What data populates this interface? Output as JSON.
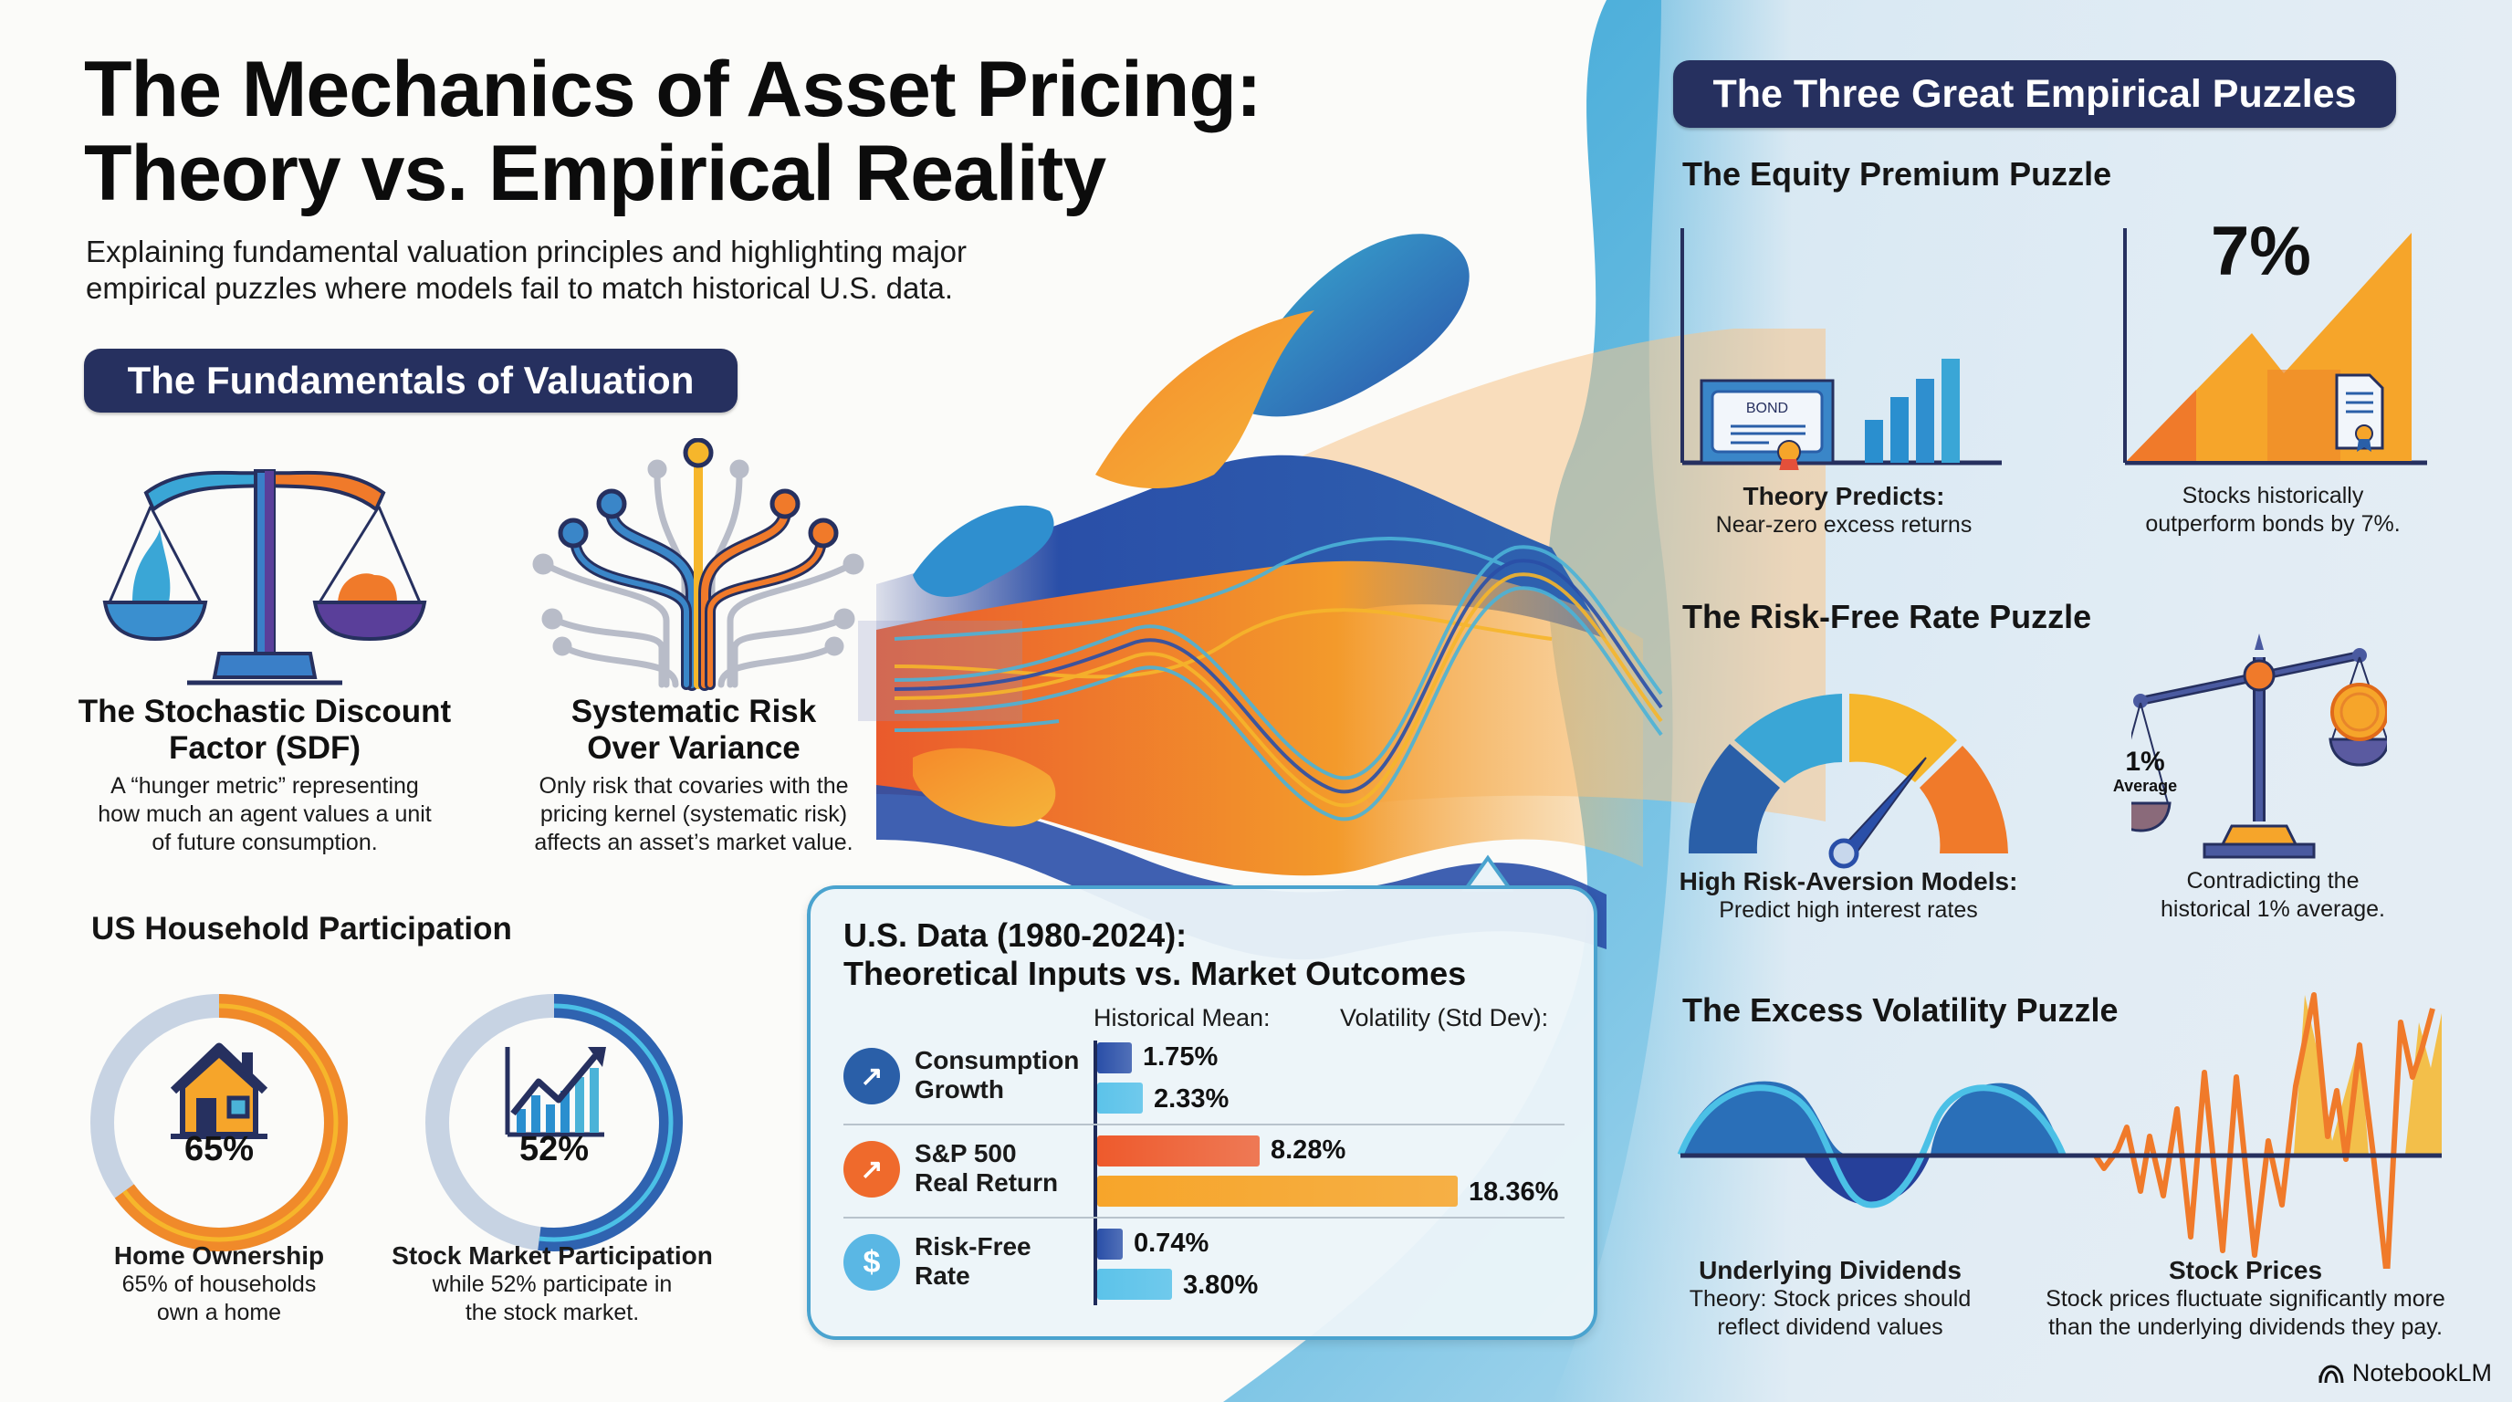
{
  "header": {
    "title_line1": "The Mechanics of Asset Pricing:",
    "title_line2": "Theory vs. Empirical Reality",
    "subtitle_line1": "Explaining fundamental valuation principles and highlighting major",
    "subtitle_line2": "empirical puzzles where models fail to match historical U.S. data."
  },
  "fundamentals": {
    "heading": "The Fundamentals of Valuation",
    "sdf": {
      "icon": "balance-scale-icon",
      "title_line1": "The Stochastic Discount",
      "title_line2": "Factor (SDF)",
      "desc_line1": "A “hunger metric” representing",
      "desc_line2": "how much an agent values a unit",
      "desc_line3": "of future consumption."
    },
    "systematic": {
      "icon": "branching-tree-icon",
      "title_line1": "Systematic Risk",
      "title_line2": "Over Variance",
      "desc_line1": "Only risk that covaries with the",
      "desc_line2": "pricing kernel (systematic risk)",
      "desc_line3": "affects an asset’s market value."
    }
  },
  "household": {
    "heading": "US Household Participation",
    "home": {
      "icon": "house-icon",
      "percent": 65,
      "value_label": "65%",
      "title": "Home Ownership",
      "desc_line1": "65% of households",
      "desc_line2": "own a home",
      "color": "#f08a2a"
    },
    "stock": {
      "icon": "chart-growth-icon",
      "percent": 52,
      "value_label": "52%",
      "title": "Stock Market Participation",
      "desc_line1": "while 52% participate in",
      "desc_line2": "the stock market.",
      "color": "#2f63b0"
    }
  },
  "data_panel": {
    "title_line1": "U.S. Data (1980-2024):",
    "title_line2": "Theoretical Inputs vs. Market Outcomes",
    "col_mean": "Historical Mean:",
    "col_vol": "Volatility (Std Dev):",
    "rows": [
      {
        "icon": "growth-chart-icon",
        "label_line1": "Consumption",
        "label_line2": "Growth",
        "mean": 1.75,
        "mean_label": "1.75%",
        "vol": 2.33,
        "vol_label": "2.33%",
        "icon_color": "#2a5fa8",
        "mean_color": "#2a4fa8",
        "vol_color": "#5cc3ea"
      },
      {
        "icon": "growth-chart-icon",
        "label_line1": "S&P 500",
        "label_line2": "Real Return",
        "mean": 8.28,
        "mean_label": "8.28%",
        "vol": 18.36,
        "vol_label": "18.36%",
        "icon_color": "#ef6a2c",
        "mean_color": "#ee5a2c",
        "vol_color": "#f7a52a"
      },
      {
        "icon": "dollar-icon",
        "label_line1": "Risk-Free",
        "label_line2": "Rate",
        "mean": 0.74,
        "mean_label": "0.74%",
        "vol": 3.8,
        "vol_label": "3.80%",
        "icon_color": "#5ab7e4",
        "mean_color": "#2a4fa8",
        "vol_color": "#5cc3ea"
      }
    ]
  },
  "puzzles": {
    "heading": "The Three Great Empirical Puzzles",
    "equity": {
      "title": "The Equity Premium Puzzle",
      "bond_label": "BOND",
      "big_value": "7%",
      "left_title": "Theory Predicts:",
      "left_desc": "Near-zero excess returns",
      "right_desc_line1": "Stocks historically",
      "right_desc_line2": "outperform bonds by 7%."
    },
    "riskfree": {
      "title": "The Risk-Free Rate Puzzle",
      "scale_label_value": "1%",
      "scale_label_text": "Average",
      "left_title": "High Risk-Aversion Models:",
      "left_desc": "Predict high interest rates",
      "right_desc_line1": "Contradicting the",
      "right_desc_line2": "historical 1% average."
    },
    "volatility": {
      "title": "The Excess Volatility Puzzle",
      "left_title": "Underlying Dividends",
      "left_desc_line1": "Theory: Stock prices should",
      "left_desc_line2": "reflect dividend values",
      "right_title": "Stock Prices",
      "right_desc_line1": "Stock prices fluctuate significantly more",
      "right_desc_line2": "than the underlying dividends they pay."
    }
  },
  "branding": {
    "logo_icon": "notebooklm-logo-icon",
    "name": "NotebookLM"
  },
  "colors": {
    "navy": "#26305f",
    "orange": "#f07a2a",
    "blue": "#2f63b0",
    "cyan": "#4bb3d8",
    "yellow": "#f6b62b"
  }
}
